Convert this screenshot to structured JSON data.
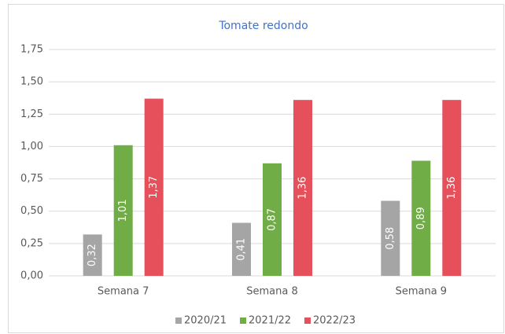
{
  "chart_data": {
    "type": "bar",
    "title": "Tomate redondo",
    "categories": [
      "Semana 7",
      "Semana 8",
      "Semana 9"
    ],
    "series": [
      {
        "name": "2020/21",
        "color": "#a5a5a5",
        "values": [
          0.32,
          0.41,
          0.58
        ],
        "value_labels": [
          "0,32",
          "0,41",
          "0,58"
        ]
      },
      {
        "name": "2021/22",
        "color": "#70ad47",
        "values": [
          1.01,
          0.87,
          0.89
        ],
        "value_labels": [
          "1,01",
          "0,87",
          "0,89"
        ]
      },
      {
        "name": "2022/23",
        "color": "#e5505a",
        "values": [
          1.37,
          1.36,
          1.36
        ],
        "value_labels": [
          "1,37",
          "1,36",
          "1,36"
        ]
      }
    ],
    "ylim": [
      0,
      1.75
    ],
    "yticks": [
      {
        "value": 0,
        "label": "0,00"
      },
      {
        "value": 0.25,
        "label": "0,25"
      },
      {
        "value": 0.5,
        "label": "0,50"
      },
      {
        "value": 0.75,
        "label": "0,75"
      },
      {
        "value": 1,
        "label": "1,00"
      },
      {
        "value": 1.25,
        "label": "1,25"
      },
      {
        "value": 1.5,
        "label": "1,50"
      },
      {
        "value": 1.75,
        "label": "1,75"
      }
    ],
    "grid": true,
    "legend": "bottom"
  }
}
